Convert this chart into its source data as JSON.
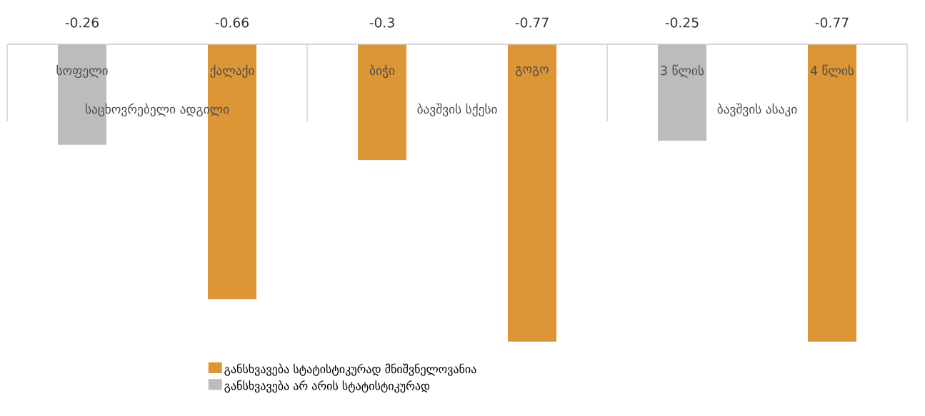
{
  "chart_data": {
    "type": "bar",
    "categories": [
      "სოფელი",
      "ქალაქი",
      "ბიჭი",
      "გოგო",
      "3 წლის",
      "4 წლის"
    ],
    "series": [
      {
        "name": "განსხვავება სტატისტიკურად მნიშვნელოვანია",
        "color": "#dc9636",
        "values": [
          null,
          -0.66,
          -0.3,
          -0.77,
          null,
          -0.77
        ]
      },
      {
        "name": "განსხვავება არ არის სტატისტიკურად",
        "color": "#bcbcbc",
        "values": [
          -0.26,
          null,
          null,
          null,
          -0.25,
          null
        ]
      }
    ],
    "tick_labels": "x",
    "legend": "bottom",
    "data_labels": true,
    "annotations": [
      "საცხოვრებელი ადგილი",
      "ბავშვის სქესი",
      "ბავშვის ასაკი"
    ]
  }
}
